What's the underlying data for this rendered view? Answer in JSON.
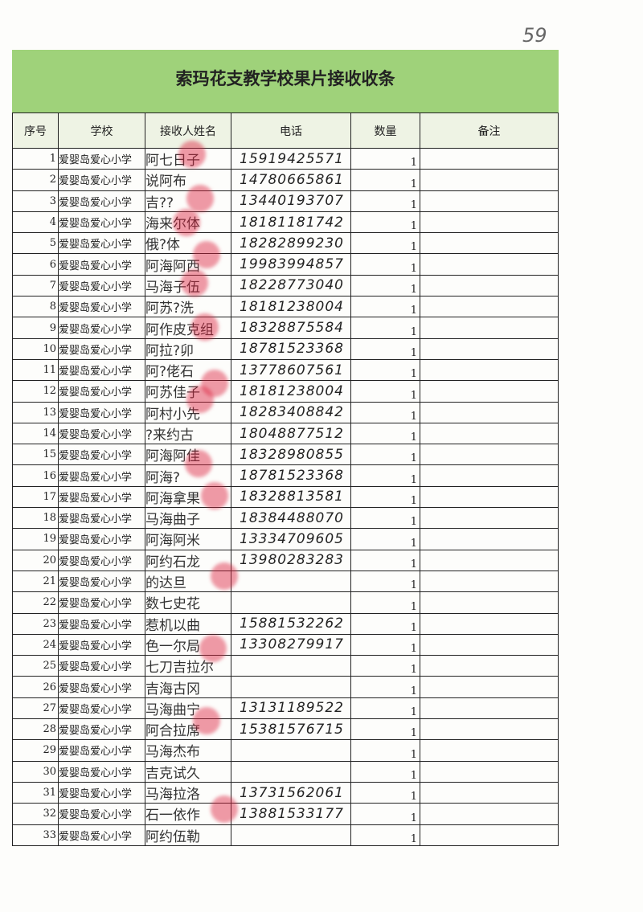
{
  "page_number": "59",
  "title": "索玛花支教学校果片接收收条",
  "colors": {
    "header_band": "#9fd27a",
    "stamp": "#dc1e3c"
  },
  "columns": [
    "序号",
    "学校",
    "接收人姓名",
    "电话",
    "数量",
    "备注"
  ],
  "rows": [
    {
      "no": "1",
      "school": "爱婴岛爱心小学",
      "name": "阿七日子",
      "phone": "15919425571",
      "qty": "1",
      "note": ""
    },
    {
      "no": "2",
      "school": "爱婴岛爱心小学",
      "name": "说阿布",
      "phone": "14780665861",
      "qty": "1",
      "note": ""
    },
    {
      "no": "3",
      "school": "爱婴岛爱心小学",
      "name": "吉??",
      "phone": "13440193707",
      "qty": "1",
      "note": ""
    },
    {
      "no": "4",
      "school": "爱婴岛爱心小学",
      "name": "海来尔体",
      "phone": "18181181742",
      "qty": "1",
      "note": ""
    },
    {
      "no": "5",
      "school": "爱婴岛爱心小学",
      "name": "俄?体",
      "phone": "18282899230",
      "qty": "1",
      "note": ""
    },
    {
      "no": "6",
      "school": "爱婴岛爱心小学",
      "name": "阿海阿西",
      "phone": "19983994857",
      "qty": "1",
      "note": ""
    },
    {
      "no": "7",
      "school": "爱婴岛爱心小学",
      "name": "马海子伍",
      "phone": "18228773040",
      "qty": "1",
      "note": ""
    },
    {
      "no": "8",
      "school": "爱婴岛爱心小学",
      "name": "阿苏?洗",
      "phone": "18181238004",
      "qty": "1",
      "note": ""
    },
    {
      "no": "9",
      "school": "爱婴岛爱心小学",
      "name": "阿作皮克组",
      "phone": "18328875584",
      "qty": "1",
      "note": ""
    },
    {
      "no": "10",
      "school": "爱婴岛爱心小学",
      "name": "阿拉?卯",
      "phone": "18781523368",
      "qty": "1",
      "note": ""
    },
    {
      "no": "11",
      "school": "爱婴岛爱心小学",
      "name": "阿?佬石",
      "phone": "13778607561",
      "qty": "1",
      "note": ""
    },
    {
      "no": "12",
      "school": "爱婴岛爱心小学",
      "name": "阿苏佳子",
      "phone": "18181238004",
      "qty": "1",
      "note": ""
    },
    {
      "no": "13",
      "school": "爱婴岛爱心小学",
      "name": "阿村小先",
      "phone": "18283408842",
      "qty": "1",
      "note": ""
    },
    {
      "no": "14",
      "school": "爱婴岛爱心小学",
      "name": "?来约古",
      "phone": "18048877512",
      "qty": "1",
      "note": ""
    },
    {
      "no": "15",
      "school": "爱婴岛爱心小学",
      "name": "阿海阿佳",
      "phone": "18328980855",
      "qty": "1",
      "note": ""
    },
    {
      "no": "16",
      "school": "爱婴岛爱心小学",
      "name": "阿海?",
      "phone": "18781523368",
      "qty": "1",
      "note": ""
    },
    {
      "no": "17",
      "school": "爱婴岛爱心小学",
      "name": "阿海拿果",
      "phone": "18328813581",
      "qty": "1",
      "note": ""
    },
    {
      "no": "18",
      "school": "爱婴岛爱心小学",
      "name": "马海曲子",
      "phone": "18384488070",
      "qty": "1",
      "note": ""
    },
    {
      "no": "19",
      "school": "爱婴岛爱心小学",
      "name": "阿海阿米",
      "phone": "13334709605",
      "qty": "1",
      "note": ""
    },
    {
      "no": "20",
      "school": "爱婴岛爱心小学",
      "name": "阿约石龙",
      "phone": "13980283283",
      "qty": "1",
      "note": ""
    },
    {
      "no": "21",
      "school": "爱婴岛爱心小学",
      "name": "的达旦",
      "phone": "",
      "qty": "1",
      "note": ""
    },
    {
      "no": "22",
      "school": "爱婴岛爱心小学",
      "name": "数七史花",
      "phone": "",
      "qty": "1",
      "note": ""
    },
    {
      "no": "23",
      "school": "爱婴岛爱心小学",
      "name": "惹机以曲",
      "phone": "15881532262",
      "qty": "1",
      "note": ""
    },
    {
      "no": "24",
      "school": "爱婴岛爱心小学",
      "name": "色一尔局",
      "phone": "13308279917",
      "qty": "1",
      "note": ""
    },
    {
      "no": "25",
      "school": "爱婴岛爱心小学",
      "name": "七刀吉拉尔",
      "phone": "",
      "qty": "1",
      "note": ""
    },
    {
      "no": "26",
      "school": "爱婴岛爱心小学",
      "name": "吉海古冈",
      "phone": "",
      "qty": "1",
      "note": ""
    },
    {
      "no": "27",
      "school": "爱婴岛爱心小学",
      "name": "马海曲宁",
      "phone": "13131189522",
      "qty": "1",
      "note": ""
    },
    {
      "no": "28",
      "school": "爱婴岛爱心小学",
      "name": "阿合拉席",
      "phone": "15381576715",
      "qty": "1",
      "note": ""
    },
    {
      "no": "29",
      "school": "爱婴岛爱心小学",
      "name": "马海杰布",
      "phone": "",
      "qty": "1",
      "note": ""
    },
    {
      "no": "30",
      "school": "爱婴岛爱心小学",
      "name": "吉克试久",
      "phone": "",
      "qty": "1",
      "note": ""
    },
    {
      "no": "31",
      "school": "爱婴岛爱心小学",
      "name": "马海拉洛",
      "phone": "13731562061",
      "qty": "1",
      "note": ""
    },
    {
      "no": "32",
      "school": "爱婴岛爱心小学",
      "name": "石一依作",
      "phone": "13881533177",
      "qty": "1",
      "note": ""
    },
    {
      "no": "33",
      "school": "爱婴岛爱心小学",
      "name": "阿约伍勒",
      "phone": "",
      "qty": "1",
      "note": ""
    }
  ]
}
